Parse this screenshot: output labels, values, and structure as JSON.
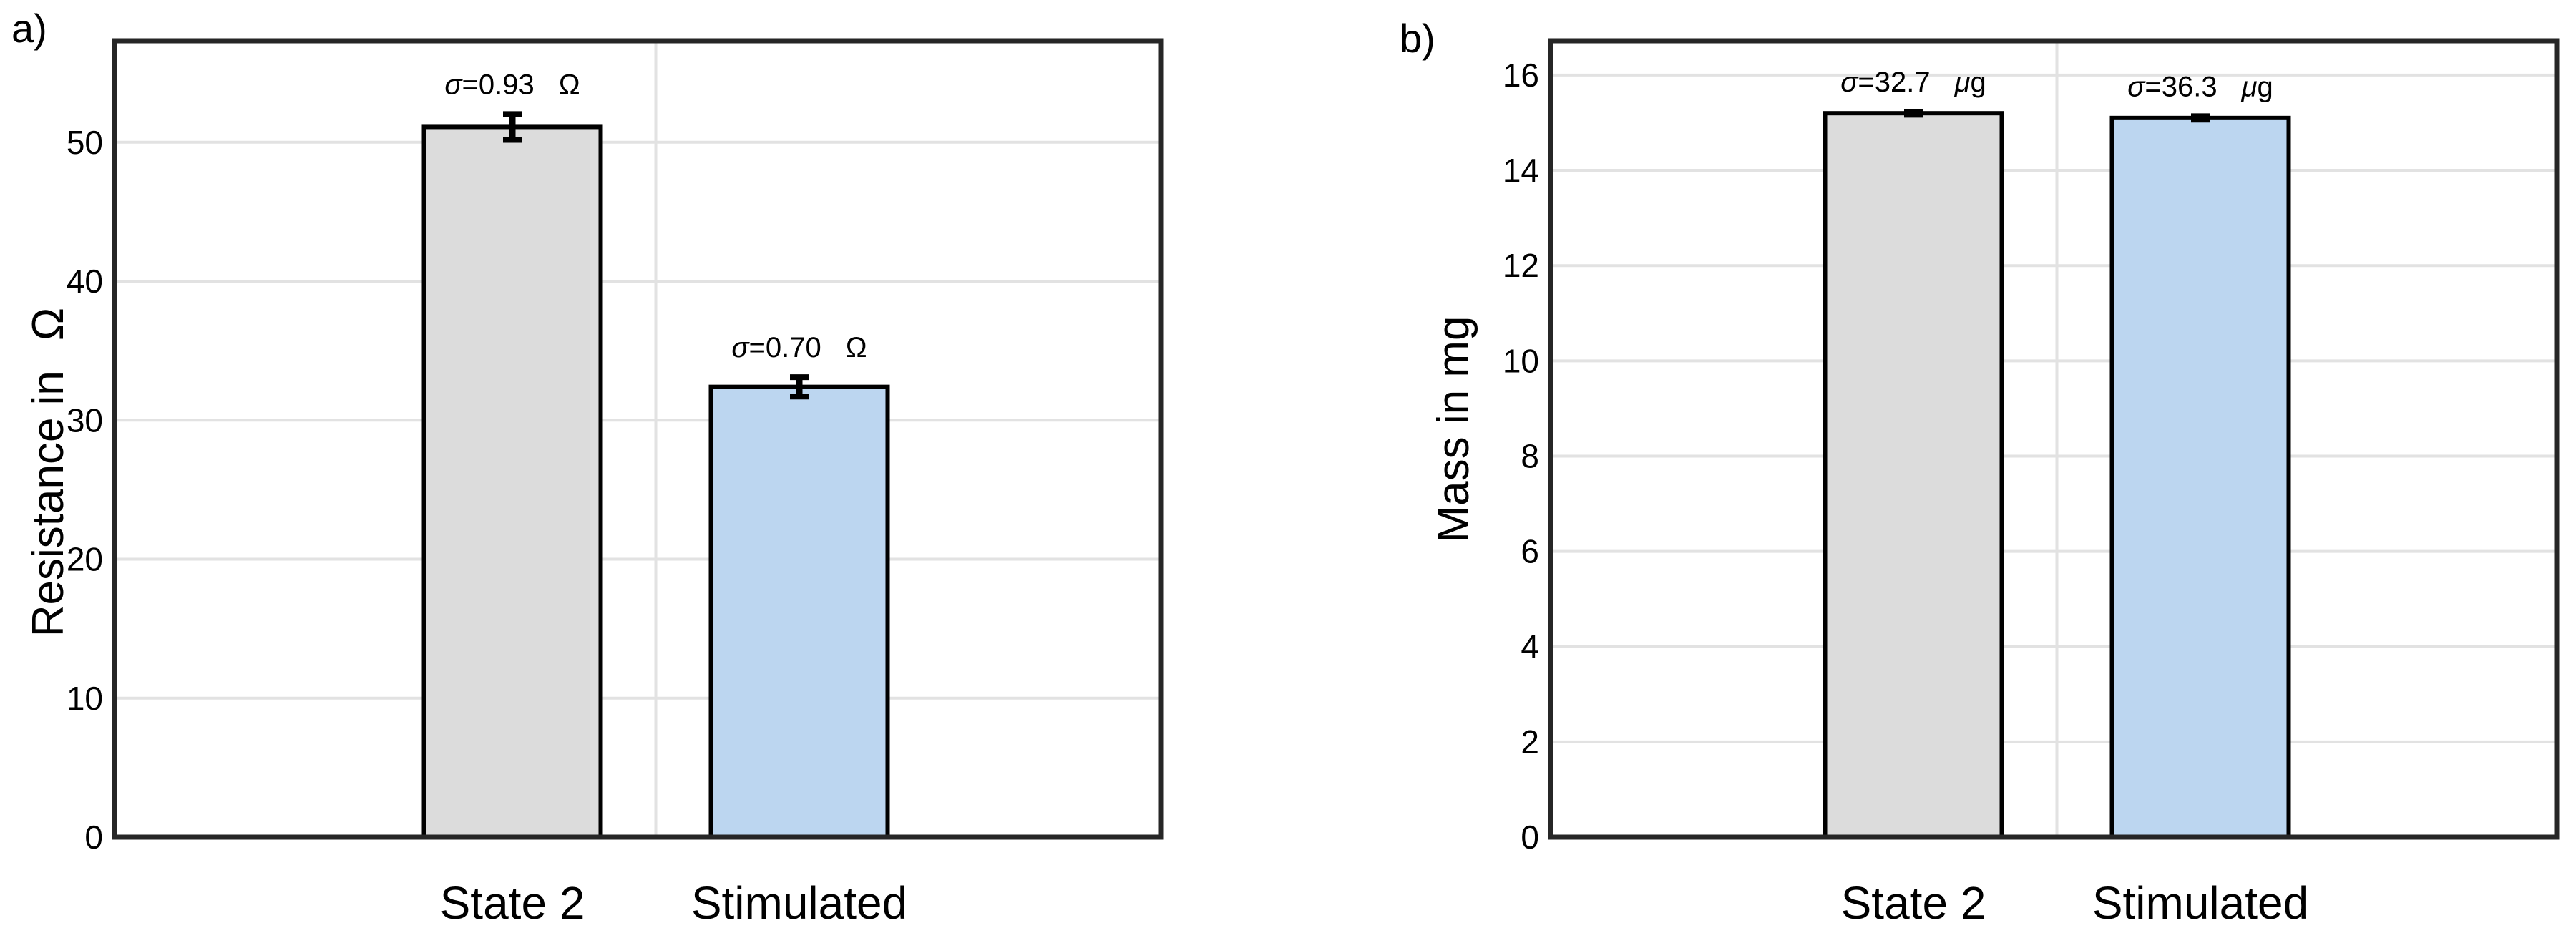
{
  "figure": {
    "background": "#ffffff",
    "panel_labels": {
      "a": "a)",
      "b": "b)"
    }
  },
  "colors": {
    "bar_gray": "#dcdcdc",
    "bar_blue": "#bcd6f0",
    "bar_edge": "#000000",
    "grid": "#e2e2e2",
    "spine": "#262626",
    "text": "#000000"
  },
  "chart_data": [
    {
      "type": "bar",
      "panel_label": "a)",
      "ylabel_text": "Resistance in Ω",
      "ylabel_parts": [
        {
          "t": "Resistance in"
        },
        {
          "t": "Ω",
          "gap": true
        }
      ],
      "categories": [
        "State 2",
        "Stimulated"
      ],
      "values": [
        51.1,
        32.4
      ],
      "errors": [
        0.93,
        0.7
      ],
      "bar_colors": [
        "gray",
        "blue"
      ],
      "annotations": [
        {
          "text": "σ=0.93 Ω",
          "parts": [
            {
              "t": "σ",
              "i": true
            },
            {
              "t": "=0.93"
            },
            {
              "t": "Ω",
              "gap": true
            }
          ]
        },
        {
          "text": "σ=0.70 Ω",
          "parts": [
            {
              "t": "σ",
              "i": true
            },
            {
              "t": "=0.70"
            },
            {
              "t": "Ω",
              "gap": true
            }
          ]
        }
      ],
      "yticks": [
        0,
        10,
        20,
        30,
        40,
        50
      ],
      "ylim": [
        0,
        57.3
      ],
      "grid": true,
      "legend": "none"
    },
    {
      "type": "bar",
      "panel_label": "b)",
      "ylabel_text": "Mass in mg",
      "ylabel_parts": [
        {
          "t": "Mass in mg"
        }
      ],
      "categories": [
        "State 2",
        "Stimulated"
      ],
      "values": [
        15.2,
        15.1
      ],
      "errors": [
        0.0327,
        0.0363
      ],
      "bar_colors": [
        "gray",
        "blue"
      ],
      "annotations": [
        {
          "text": "σ=32.7 μg",
          "parts": [
            {
              "t": "σ",
              "i": true
            },
            {
              "t": "=32.7"
            },
            {
              "t": "μ",
              "i": true,
              "gap": true
            },
            {
              "t": "g"
            }
          ]
        },
        {
          "text": "σ=36.3 μg",
          "parts": [
            {
              "t": "σ",
              "i": true
            },
            {
              "t": "=36.3"
            },
            {
              "t": "μ",
              "i": true,
              "gap": true
            },
            {
              "t": "g"
            }
          ]
        }
      ],
      "yticks": [
        0,
        2,
        4,
        6,
        8,
        10,
        12,
        14,
        16
      ],
      "ylim": [
        0,
        16.72
      ],
      "grid": true,
      "legend": "none"
    }
  ]
}
